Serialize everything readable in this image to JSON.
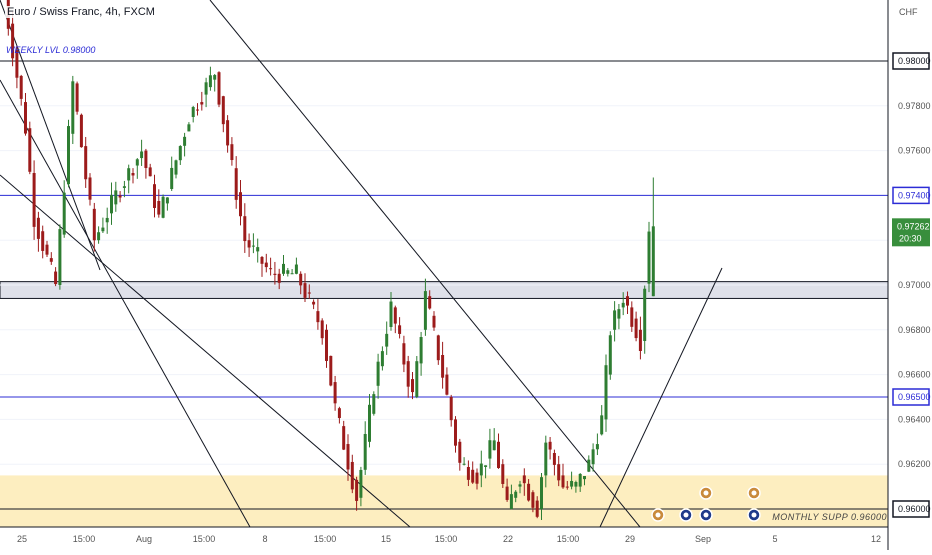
{
  "header": {
    "symbol_title": "Euro / Swiss Franc, 4h, FXCM",
    "currency": "CHF"
  },
  "annotations": {
    "weekly_level": "WEEKLY LVL 0.98000",
    "monthly_support": "MONTHLY SUPP 0.96000"
  },
  "price_badge": {
    "price": "0.97262",
    "countdown": "20:30",
    "color": "#388e3c"
  },
  "colors": {
    "up_candle": "#2e7d32",
    "down_candle": "#9c1b1b",
    "blue_level": "#2c2cd6",
    "zone_fill": "#fdeec0",
    "gray_zone_fill": "#dfe1ea"
  },
  "chart_data": {
    "type": "candlestick",
    "instrument": "Euro / Swiss Franc",
    "timeframe": "4h",
    "source": "FXCM",
    "y_range": [
      0.9596,
      0.9822
    ],
    "y_ticks": [
      "0.98000",
      "0.97800",
      "0.97600",
      "0.97400",
      "0.97262",
      "0.97000",
      "0.96800",
      "0.96600",
      "0.96500",
      "0.96400",
      "0.96200",
      "0.96000"
    ],
    "x_ticks": [
      "25",
      "15:00",
      "Aug",
      "15:00",
      "8",
      "15:00",
      "15",
      "15:00",
      "22",
      "15:00",
      "29",
      "Sep",
      "5",
      "12"
    ],
    "horizontal_levels": [
      {
        "price": 0.98,
        "label": "0.98000",
        "style": "black"
      },
      {
        "price": 0.974,
        "label": "0.97400",
        "style": "blue"
      },
      {
        "price": 0.965,
        "label": "0.96500",
        "style": "blue"
      },
      {
        "price": 0.96,
        "label": "0.96000",
        "style": "black"
      }
    ],
    "zones": [
      {
        "from": 0.9694,
        "to": 0.97015,
        "kind": "gray"
      },
      {
        "from": 0.96,
        "to": 0.9615,
        "kind": "yellow"
      }
    ],
    "path": [
      [
        0,
        0.984
      ],
      [
        6,
        0.977
      ],
      [
        8,
        0.973
      ],
      [
        13,
        0.97
      ],
      [
        17,
        0.979
      ],
      [
        22,
        0.972
      ],
      [
        27,
        0.974
      ],
      [
        33,
        0.976
      ],
      [
        37,
        0.973
      ],
      [
        44,
        0.9775
      ],
      [
        50,
        0.9795
      ],
      [
        57,
        0.972
      ],
      [
        63,
        0.9705
      ],
      [
        69,
        0.9705
      ],
      [
        75,
        0.968
      ],
      [
        78,
        0.9645
      ],
      [
        83,
        0.9605
      ],
      [
        87,
        0.9655
      ],
      [
        91,
        0.969
      ],
      [
        96,
        0.965
      ],
      [
        99,
        0.9695
      ],
      [
        103,
        0.966
      ],
      [
        107,
        0.962
      ],
      [
        111,
        0.9615
      ],
      [
        115,
        0.963
      ],
      [
        118,
        0.96
      ],
      [
        121,
        0.9615
      ],
      [
        125,
        0.96
      ],
      [
        127,
        0.963
      ],
      [
        131,
        0.961
      ],
      [
        134,
        0.961
      ],
      [
        137,
        0.962
      ],
      [
        140,
        0.964
      ],
      [
        142,
        0.968
      ],
      [
        145,
        0.9695
      ],
      [
        147,
        0.9685
      ],
      [
        149,
        0.9675
      ],
      [
        151,
        0.97262
      ]
    ],
    "last_candle": {
      "open": 0.9695,
      "high": 0.9748,
      "low": 0.9695,
      "close": 0.97262
    }
  }
}
